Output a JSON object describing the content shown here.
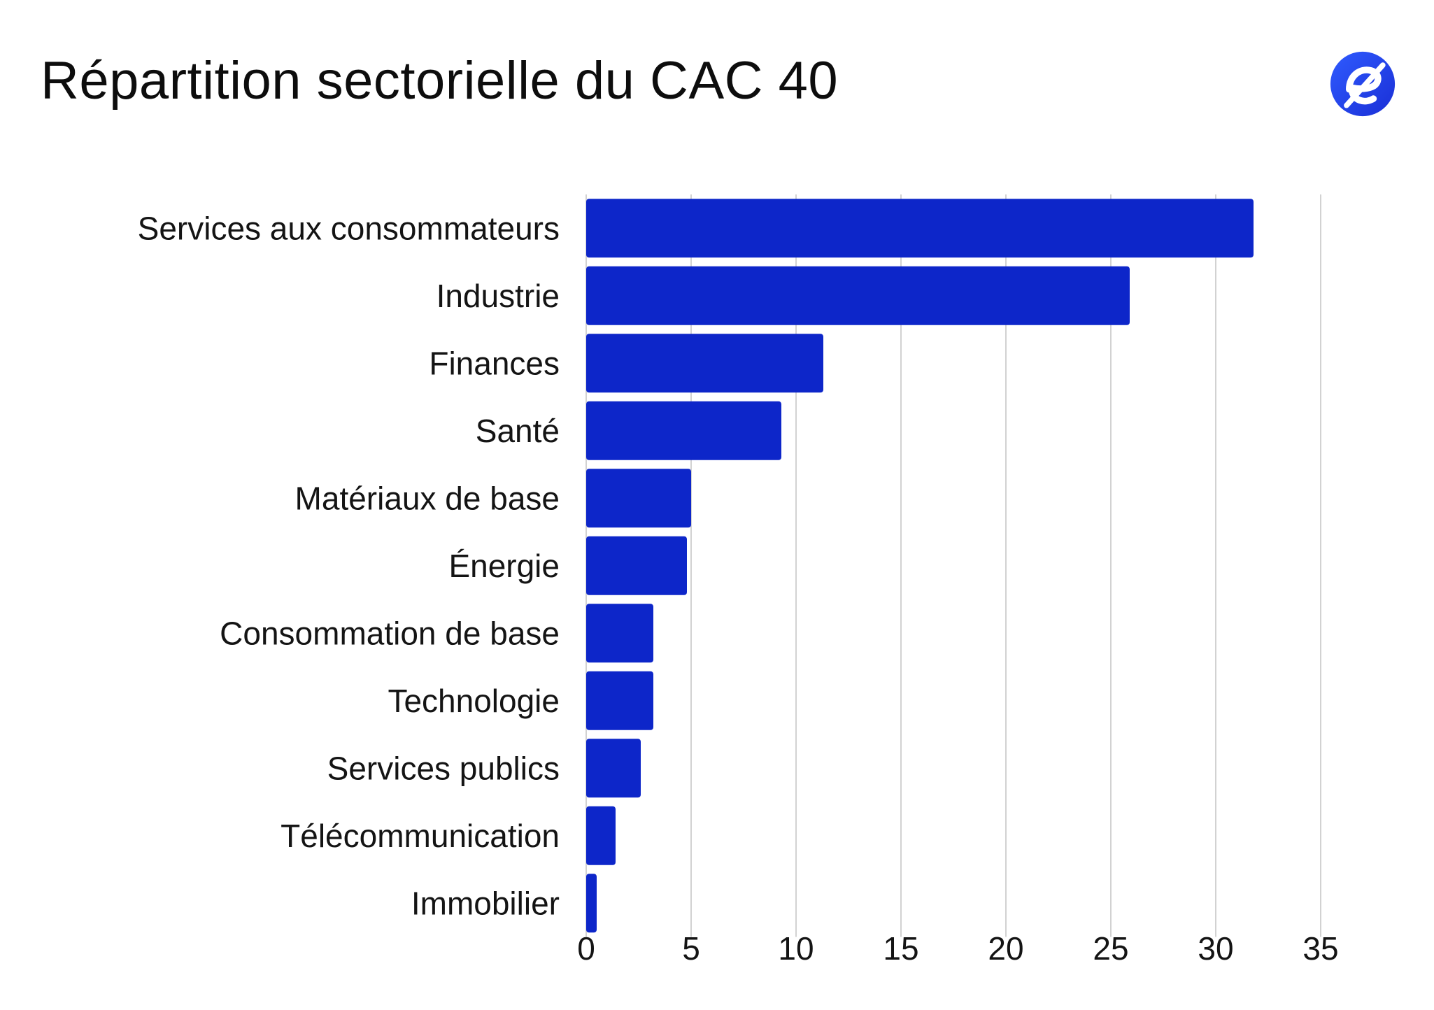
{
  "colors": {
    "bar": "#0d26c9",
    "grid": "#d2d2d2",
    "text": "#141414",
    "logo_bg": "#2544e8"
  },
  "logo": {
    "icon": "brand-e-logo-icon"
  },
  "chart_data": {
    "type": "bar",
    "orientation": "horizontal",
    "title": "Répartition sectorielle du CAC 40",
    "categories": [
      "Services aux consommateurs",
      "Industrie",
      "Finances",
      "Santé",
      "Matériaux de base",
      "Énergie",
      "Consommation de base",
      "Technologie",
      "Services publics",
      "Télécommunication",
      "Immobilier"
    ],
    "values": [
      31.8,
      25.9,
      11.3,
      9.3,
      5.0,
      4.8,
      3.2,
      3.2,
      2.6,
      1.4,
      0.5
    ],
    "xlim": [
      0,
      35
    ],
    "xticks": [
      "0",
      "5",
      "10",
      "15",
      "20",
      "25",
      "30",
      "35"
    ],
    "xlabel": "",
    "ylabel": "",
    "grid": "vertical"
  }
}
